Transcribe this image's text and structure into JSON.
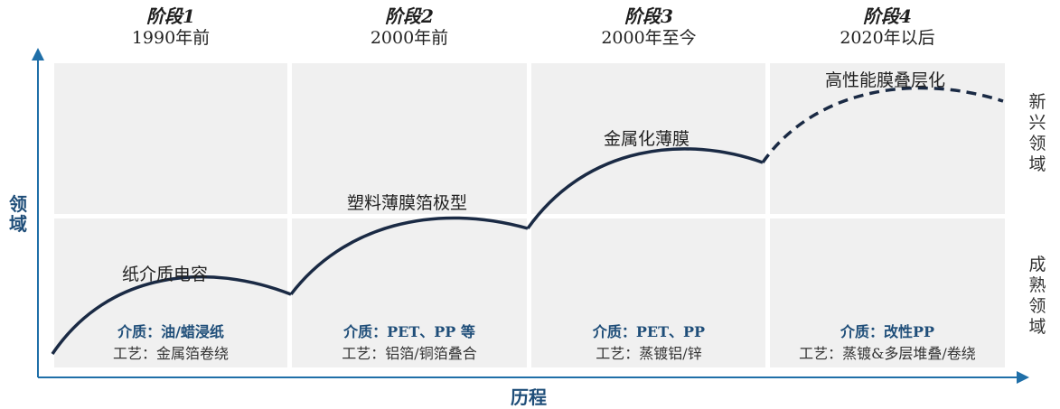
{
  "stages": [
    {
      "name": "阶段1",
      "period": "1990年前"
    },
    {
      "name": "阶段2",
      "period": "2000年前"
    },
    {
      "name": "阶段3",
      "period": "2000年至今"
    },
    {
      "name": "阶段4",
      "period": "2020年以后"
    }
  ],
  "curve_labels": [
    "纸介质电容",
    "塑料薄膜箔极型",
    "金属化薄膜",
    "高性能膜叠层化"
  ],
  "materials": [
    {
      "medium": "介质：油/蜡浸纸",
      "process": "工艺：金属箔卷绕"
    },
    {
      "medium": "介质：PET、PP 等",
      "process": "工艺：铝箔/铜箔叠合"
    },
    {
      "medium": "介质：PET、PP",
      "process": "工艺：蒸镀铝/锌"
    },
    {
      "medium": "介质：改性PP",
      "process": "工艺：蒸镀&多层堆叠/卷绕"
    }
  ],
  "rows": {
    "emerging": "新兴领域",
    "mature": "成熟领域"
  },
  "axes": {
    "y_title": "领域",
    "x_title": "历程"
  },
  "colors": {
    "curve": "#1a2a44",
    "axis": "#1f6fa8",
    "accent_text": "#1f4e79",
    "cell": "#f0f0f0"
  }
}
